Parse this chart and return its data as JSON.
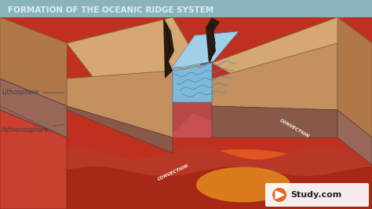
{
  "title": "FORMATION OF THE OCEANIC RIDGE SYSTEM",
  "title_color": "#dceef0",
  "bg_color": "#aec8ce",
  "labels": {
    "lithosphere": "Lithosphere",
    "asthenosphere": "Asthenosphere"
  },
  "colors": {
    "crust_top": "#d4a870",
    "crust_front": "#c49060",
    "crust_side": "#b07848",
    "litho_side": "#9a6858",
    "litho_front": "#8a5848",
    "astheno_side": "#c84030",
    "astheno_front": "#c04030",
    "mantle_bg": "#c03020",
    "mantle_mid": "#b03020",
    "mantle_wave": "#a82818",
    "hot_yellow": "#f0a020",
    "hot_orange": "#e86020",
    "water_fill": "#80b8d8",
    "water_line": "#4888b0",
    "water_top": "#a0d0e8",
    "crack_color": "#1a1010",
    "text_color": "#404040",
    "study_orange": "#e06820",
    "study_text": "#222222",
    "title_bar": "#8ab4bc"
  }
}
